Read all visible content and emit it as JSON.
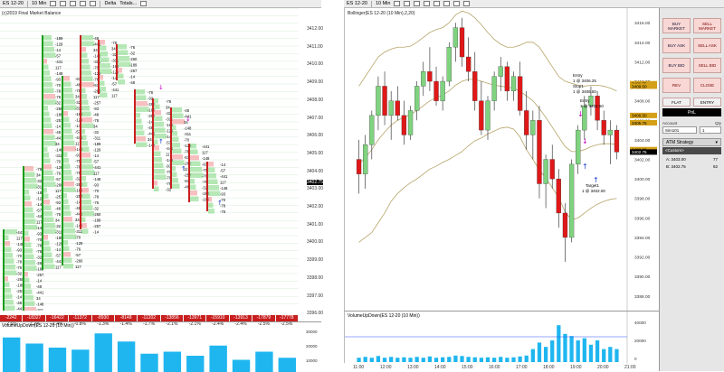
{
  "toolbar_left": {
    "instrument": "ES 12-20",
    "interval": "10 Min",
    "mode": "Delta",
    "totals": "Totals..."
  },
  "toolbar_right": {
    "instrument": "ES 12-20",
    "interval": "10 Min"
  },
  "left_chart": {
    "title": "(c)2019 Final Market Balance",
    "price_ticks": [
      "3412.00",
      "3411.00",
      "3410.00",
      "3409.00",
      "3408.00",
      "3407.00",
      "3406.00",
      "3405.00",
      "3404.00",
      "3403.00",
      "3402.00",
      "3401.00",
      "3400.00",
      "3399.00",
      "3398.00",
      "3397.00",
      "3396.00"
    ],
    "current_price": "3402.75",
    "deltas": [
      "-2242",
      "-18327",
      "-16422",
      "-11372",
      "-8930",
      "-8148",
      "-11202",
      "-13856",
      "-13971",
      "-15910",
      "-13913",
      "-17879",
      "-17778"
    ],
    "percents": [
      "-2.6%",
      "-2.2%",
      "-1.4%",
      "-0.8%",
      "-1.3%",
      "-1.4%",
      "-1.7%",
      "-2.1%",
      "-2.1%",
      "-2.4%",
      "-2.4%",
      "-2.5%",
      "-2.5%"
    ],
    "volume_title": "VolumeUpDown(ES 12-20 (10 Min))",
    "volume_ticks": [
      "30000",
      "20000",
      "10000"
    ],
    "volume_bars": [
      0.85,
      0.7,
      0.6,
      0.55,
      0.95,
      0.75,
      0.45,
      0.5,
      0.4,
      0.65,
      0.3,
      0.5,
      0.35
    ]
  },
  "right_chart": {
    "title": "Bollinger(ES 12-20 (10 Min),2,20)",
    "price_ticks": [
      "3416.00",
      "3414.00",
      "3412.00",
      "3410.00",
      "3408.00",
      "3406.00",
      "3404.00",
      "3402.00",
      "3400.00",
      "3398.00",
      "3396.00",
      "3394.00",
      "3392.00",
      "3390.00",
      "3388.00"
    ],
    "price_min": 3386.5,
    "price_max": 3417.5,
    "current_price": "3402.75",
    "price_tags": [
      "3409.75",
      "3409.50",
      "3406.50",
      "3405.75",
      "3403.00"
    ],
    "candles": [
      [
        3402.0,
        3404.0,
        3398.5,
        3400.5
      ],
      [
        3400.5,
        3404.5,
        3399.0,
        3403.5
      ],
      [
        3403.5,
        3407.0,
        3402.0,
        3406.5
      ],
      [
        3406.5,
        3410.5,
        3405.0,
        3409.5
      ],
      [
        3409.5,
        3411.0,
        3405.5,
        3406.5
      ],
      [
        3406.5,
        3409.0,
        3404.0,
        3408.0
      ],
      [
        3408.0,
        3409.5,
        3406.0,
        3406.5
      ],
      [
        3406.5,
        3408.0,
        3403.5,
        3404.5
      ],
      [
        3404.5,
        3407.5,
        3404.0,
        3407.0
      ],
      [
        3407.0,
        3410.0,
        3406.0,
        3409.5
      ],
      [
        3409.5,
        3412.0,
        3408.5,
        3411.0
      ],
      [
        3411.0,
        3413.5,
        3409.0,
        3410.0
      ],
      [
        3410.0,
        3411.5,
        3407.5,
        3408.0
      ],
      [
        3408.0,
        3410.5,
        3407.0,
        3410.0
      ],
      [
        3410.0,
        3414.0,
        3409.5,
        3413.5
      ],
      [
        3413.5,
        3416.0,
        3412.0,
        3415.5
      ],
      [
        3415.5,
        3416.5,
        3411.5,
        3412.5
      ],
      [
        3412.5,
        3414.5,
        3410.0,
        3411.0
      ],
      [
        3411.0,
        3413.0,
        3407.0,
        3408.0
      ],
      [
        3408.0,
        3410.0,
        3404.5,
        3405.0
      ],
      [
        3405.0,
        3408.5,
        3404.0,
        3408.0
      ],
      [
        3408.0,
        3411.0,
        3407.0,
        3410.5
      ],
      [
        3410.5,
        3412.5,
        3409.0,
        3411.5
      ],
      [
        3411.5,
        3412.0,
        3408.0,
        3409.0
      ],
      [
        3409.0,
        3411.0,
        3408.0,
        3410.5
      ],
      [
        3410.5,
        3412.0,
        3406.5,
        3407.0
      ],
      [
        3407.0,
        3409.0,
        3403.0,
        3404.5
      ],
      [
        3404.5,
        3407.0,
        3402.0,
        3406.0
      ],
      [
        3406.0,
        3407.5,
        3398.0,
        3399.5
      ],
      [
        3399.5,
        3402.5,
        3397.0,
        3402.0
      ],
      [
        3402.0,
        3403.5,
        3399.0,
        3400.0
      ],
      [
        3400.0,
        3401.0,
        3395.0,
        3396.5
      ],
      [
        3396.5,
        3397.5,
        3391.5,
        3394.0
      ],
      [
        3394.0,
        3402.0,
        3393.5,
        3401.5
      ],
      [
        3401.5,
        3405.5,
        3400.5,
        3405.0
      ],
      [
        3405.0,
        3408.5,
        3404.0,
        3407.5
      ],
      [
        3407.5,
        3409.5,
        3406.5,
        3408.5
      ],
      [
        3408.5,
        3409.0,
        3405.0,
        3406.0
      ],
      [
        3406.0,
        3407.0,
        3403.5,
        3404.5
      ],
      [
        3404.5,
        3406.0,
        3401.5,
        3405.0
      ],
      [
        3405.0,
        3405.5,
        3402.0,
        3402.75
      ]
    ],
    "band_upper": [
      3409.5,
      3410.5,
      3411.5,
      3412.5,
      3413.0,
      3413.3,
      3413.5,
      3413.5,
      3413.6,
      3414.0,
      3414.5,
      3415.0,
      3415.3,
      3415.5,
      3416.0,
      3416.8,
      3417.2,
      3417.0,
      3416.5,
      3415.8,
      3415.0,
      3414.3,
      3413.8,
      3413.5,
      3413.5,
      3413.7,
      3414.0,
      3414.0,
      3413.5,
      3412.5,
      3411.5,
      3410.5,
      3410.0,
      3409.8,
      3409.6,
      3409.5,
      3409.6,
      3409.6,
      3409.5,
      3409.3,
      3409.0
    ],
    "band_mid": [
      3401.5,
      3402.2,
      3403.0,
      3404.0,
      3404.8,
      3405.5,
      3406.0,
      3406.3,
      3406.6,
      3407.0,
      3407.5,
      3408.0,
      3408.3,
      3408.6,
      3409.0,
      3409.6,
      3410.0,
      3410.2,
      3410.2,
      3410.0,
      3409.8,
      3409.6,
      3409.5,
      3409.4,
      3409.3,
      3409.0,
      3408.5,
      3408.0,
      3407.2,
      3406.3,
      3405.3,
      3404.3,
      3403.3,
      3402.8,
      3402.8,
      3403.0,
      3403.3,
      3403.5,
      3403.6,
      3403.6,
      3403.5
    ],
    "band_lower": [
      3393.5,
      3394.0,
      3394.5,
      3395.5,
      3396.5,
      3397.7,
      3398.5,
      3399.1,
      3399.6,
      3400.0,
      3400.5,
      3401.0,
      3401.3,
      3401.7,
      3402.0,
      3402.4,
      3402.8,
      3403.4,
      3403.9,
      3404.2,
      3404.6,
      3404.9,
      3405.2,
      3405.3,
      3405.1,
      3404.3,
      3403.0,
      3402.0,
      3400.9,
      3400.1,
      3399.1,
      3398.1,
      3396.6,
      3395.8,
      3396.0,
      3396.5,
      3397.0,
      3397.4,
      3397.7,
      3397.9,
      3398.0
    ],
    "annotations": {
      "entry1": "Entry",
      "entry1_price": "1 @ 3406.25",
      "stop1": "Stop1",
      "stop1_price": "1 @ 3406.50",
      "entry2": "Entry",
      "entry2_price": "1 @ 3404.50",
      "target": "Target1",
      "target_price": "1 @ 3402.00"
    },
    "volume_title": "VolumeUpDown(ES 12-20 (10 Min))",
    "volume_ticks": [
      "40000",
      "20000",
      "0"
    ],
    "volume_bars": [
      0.1,
      0.12,
      0.1,
      0.14,
      0.1,
      0.12,
      0.1,
      0.11,
      0.1,
      0.12,
      0.1,
      0.13,
      0.1,
      0.11,
      0.12,
      0.15,
      0.14,
      0.12,
      0.11,
      0.1,
      0.11,
      0.1,
      0.12,
      0.1,
      0.11,
      0.13,
      0.15,
      0.3,
      0.45,
      0.35,
      0.5,
      0.85,
      0.65,
      0.6,
      0.5,
      0.55,
      0.4,
      0.5,
      0.3,
      0.35,
      0.3
    ],
    "time_ticks": [
      "11:00",
      "12:00",
      "13:00",
      "14:00",
      "15:00",
      "16:00",
      "17:00",
      "18:00",
      "19:00",
      "20:00",
      "21:00"
    ]
  },
  "order_panel": {
    "buy_market": "BUY MARKET",
    "sell_market": "SELL MARKET",
    "buy_ask": "BUY ASK",
    "sell_ask": "SELL ASK",
    "buy_bid": "BUY BID",
    "sell_bid": "SELL BID",
    "rev": "REV",
    "close": "CLOSE",
    "flat": "FLAT",
    "entry": "ENTRY",
    "pnl": "PnL",
    "account_label": "Account",
    "qty_label": "Qty",
    "account_value": "Sim101",
    "qty_value": "1",
    "strategy_label": "ATM Strategy",
    "strategy_value": "<Custom>",
    "ask_label": "A: 3403.00",
    "ask_size": "77",
    "bid_label": "B: 3402.75",
    "bid_size": "82",
    "colors": {
      "buy": "#f8d7d4",
      "pnl_bg": "#000000"
    }
  }
}
